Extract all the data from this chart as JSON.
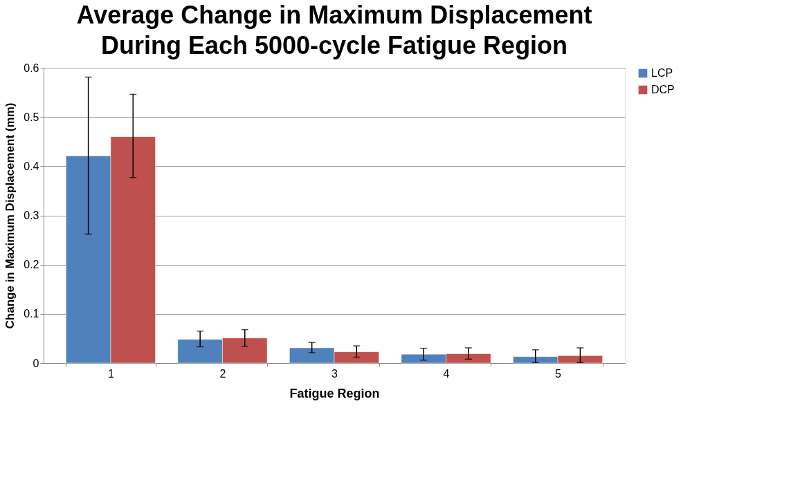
{
  "chart_data": {
    "type": "bar",
    "title": "Average Change in Maximum Displacement During Each 5000-cycle Fatigue Region",
    "xlabel": "Fatigue Region",
    "ylabel": "Change in Maximum Displacement (mm)",
    "categories": [
      "1",
      "2",
      "3",
      "4",
      "5"
    ],
    "series": [
      {
        "name": "LCP",
        "color": "#4f81bd",
        "values": [
          0.421,
          0.048,
          0.031,
          0.018,
          0.013
        ],
        "errors": [
          [
            0.262,
            0.581
          ],
          [
            0.033,
            0.065
          ],
          [
            0.021,
            0.042
          ],
          [
            0.006,
            0.03
          ],
          [
            0.001,
            0.027
          ]
        ]
      },
      {
        "name": "DCP",
        "color": "#c0504d",
        "values": [
          0.46,
          0.051,
          0.023,
          0.019,
          0.015
        ],
        "errors": [
          [
            0.377,
            0.546
          ],
          [
            0.034,
            0.068
          ],
          [
            0.012,
            0.035
          ],
          [
            0.008,
            0.031
          ],
          [
            0.001,
            0.031
          ]
        ]
      }
    ],
    "ylim": [
      0,
      0.6
    ],
    "yticks": [
      0,
      0.1,
      0.2,
      0.3,
      0.4,
      0.5,
      0.6
    ],
    "grid": "y",
    "legend": "right"
  }
}
